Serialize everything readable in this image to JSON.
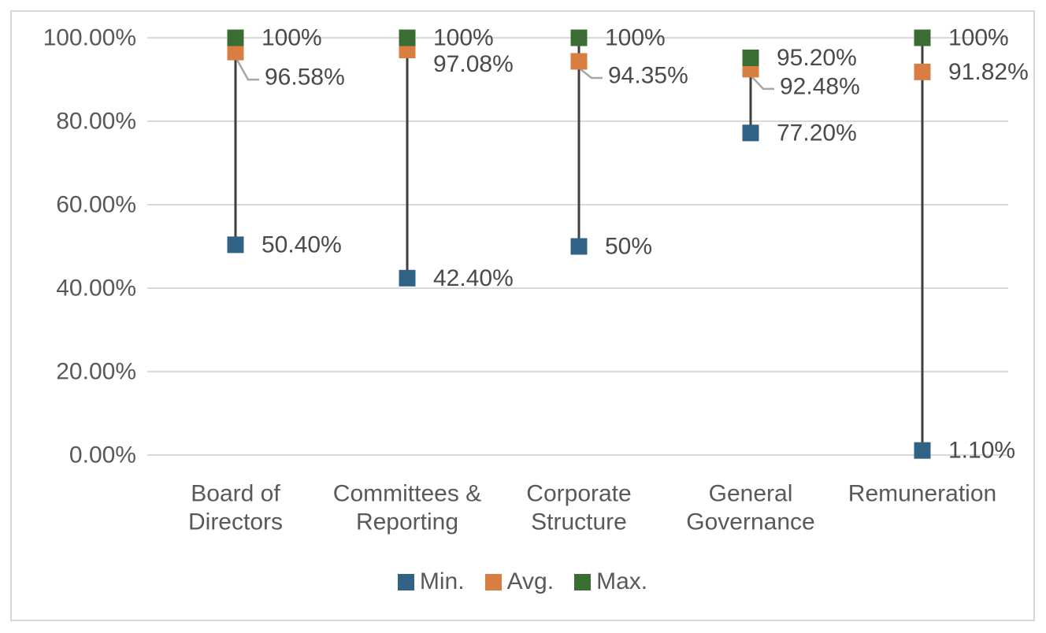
{
  "chart_data": {
    "type": "hilo-stock",
    "title": "",
    "xlabel": "",
    "ylabel": "",
    "categories": [
      "Board of Directors",
      "Committees & Reporting",
      "Corporate Structure",
      "General Governance",
      "Remuneration"
    ],
    "category_lines": [
      [
        "Board of",
        "Directors"
      ],
      [
        "Committees &",
        "Reporting"
      ],
      [
        "Corporate",
        "Structure"
      ],
      [
        "General",
        "Governance"
      ],
      [
        "Remuneration"
      ]
    ],
    "series": [
      {
        "name": "Min.",
        "color": "#2F6285",
        "values": [
          50.4,
          42.4,
          50,
          77.2,
          1.1
        ],
        "labels": [
          "50.40%",
          "42.40%",
          "50%",
          "77.20%",
          "1.10%"
        ]
      },
      {
        "name": "Avg.",
        "color": "#D97E42",
        "values": [
          96.58,
          97.08,
          94.35,
          92.48,
          91.82
        ],
        "labels": [
          "96.58%",
          "97.08%",
          "94.35%",
          "92.48%",
          "91.82%"
        ]
      },
      {
        "name": "Max.",
        "color": "#3A6D31",
        "values": [
          100,
          100,
          100,
          95.2,
          100
        ],
        "labels": [
          "100%",
          "100%",
          "100%",
          "95.20%",
          "100%"
        ]
      }
    ],
    "avg_label_offsets": [
      {
        "dy": 32,
        "leader": true
      },
      {
        "dy": 18,
        "leader": false
      },
      {
        "dy": 18,
        "leader": true
      },
      {
        "dy": 22,
        "leader": true
      },
      {
        "dy": 0,
        "leader": false
      }
    ],
    "y_axis": {
      "min": 0,
      "max": 100,
      "tick_values": [
        100,
        80,
        60,
        40,
        20,
        0
      ],
      "tick_labels": [
        "100.00%",
        "80.00%",
        "60.00%",
        "40.00%",
        "20.00%",
        "0.00%"
      ]
    },
    "grid": true,
    "legend_position": "bottom",
    "colors": {
      "grid": "#D9D9D9",
      "hilo_line": "#3F3F3F",
      "leader": "#A6A6A6",
      "axis_text": "#595959",
      "data_label_text": "#4A4A4A",
      "border": "#D6D6D6",
      "background": "#FFFFFF"
    }
  },
  "legend": {
    "items": [
      {
        "label": "Min.",
        "color": "#2F6285"
      },
      {
        "label": "Avg.",
        "color": "#D97E42"
      },
      {
        "label": "Max.",
        "color": "#3A6D31"
      }
    ]
  }
}
